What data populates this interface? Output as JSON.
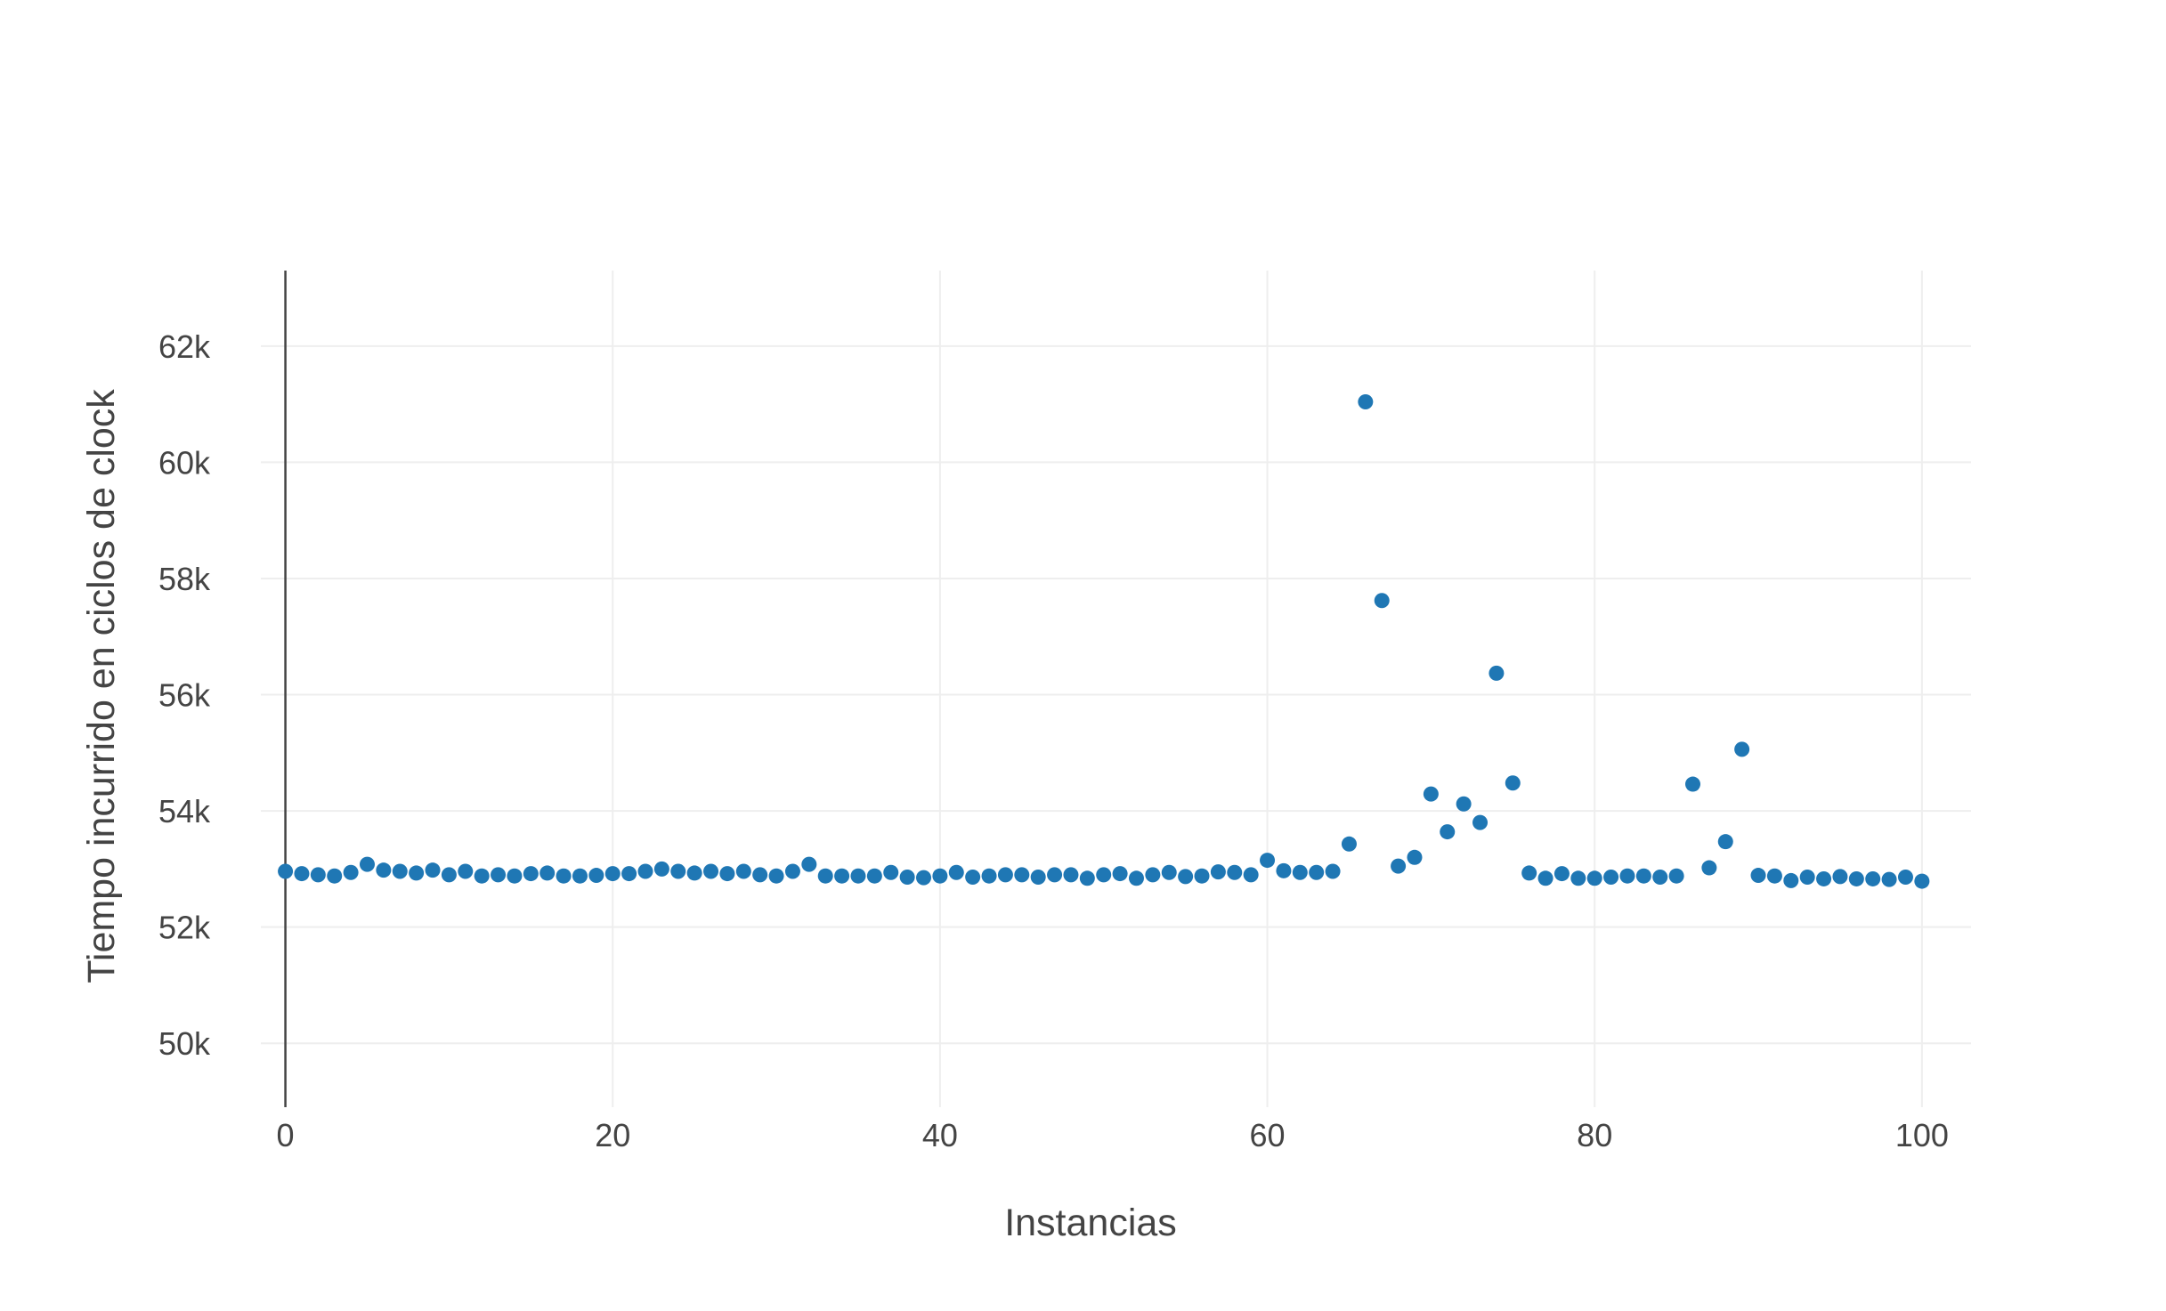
{
  "chart_data": {
    "type": "scatter",
    "title": "",
    "xlabel": "Instancias",
    "ylabel": "Tiempo incurrido en ciclos de clock",
    "xlim": [
      -1.5,
      103
    ],
    "ylim": [
      48900,
      63300
    ],
    "x_ticks": [
      0,
      20,
      40,
      60,
      80,
      100
    ],
    "x_tick_labels": [
      "0",
      "20",
      "40",
      "60",
      "80",
      "100"
    ],
    "y_ticks": [
      50000,
      52000,
      54000,
      56000,
      58000,
      60000,
      62000
    ],
    "y_tick_labels": [
      "50k",
      "52k",
      "54k",
      "56k",
      "58k",
      "60k",
      "62k"
    ],
    "grid": true,
    "legend": "none",
    "marker_color": "#1f77b4",
    "grid_color": "#eeeeee",
    "zero_line_color": "#444444",
    "series": [
      {
        "x": [
          0,
          1,
          2,
          3,
          4,
          5,
          6,
          7,
          8,
          9,
          10,
          11,
          12,
          13,
          14,
          15,
          16,
          17,
          18,
          19,
          20,
          21,
          22,
          23,
          24,
          25,
          26,
          27,
          28,
          29,
          30,
          31,
          32,
          33,
          34,
          35,
          36,
          37,
          38,
          39,
          40,
          41,
          42,
          43,
          44,
          45,
          46,
          47,
          48,
          49,
          50,
          51,
          52,
          53,
          54,
          55,
          56,
          57,
          58,
          59,
          60,
          61,
          62,
          63,
          64,
          65,
          66,
          67,
          68,
          69,
          70,
          71,
          72,
          73,
          74,
          75,
          76,
          77,
          78,
          79,
          80,
          81,
          82,
          83,
          84,
          85,
          86,
          87,
          88,
          89,
          90,
          91,
          92,
          93,
          94,
          95,
          96,
          97,
          98,
          99,
          100
        ],
        "y": [
          52960,
          52920,
          52900,
          52880,
          52940,
          53080,
          52980,
          52960,
          52930,
          52980,
          52900,
          52960,
          52880,
          52900,
          52880,
          52920,
          52930,
          52880,
          52880,
          52890,
          52920,
          52920,
          52960,
          53000,
          52960,
          52930,
          52960,
          52920,
          52960,
          52900,
          52880,
          52960,
          53080,
          52880,
          52880,
          52880,
          52880,
          52940,
          52860,
          52850,
          52880,
          52940,
          52860,
          52880,
          52900,
          52900,
          52860,
          52900,
          52900,
          52840,
          52900,
          52920,
          52840,
          52900,
          52940,
          52870,
          52880,
          52950,
          52940,
          52900,
          53150,
          52970,
          52940,
          52940,
          52960,
          53430,
          61040,
          57620,
          53050,
          53200,
          54290,
          53640,
          54120,
          53800,
          56370,
          54480,
          52930,
          52840,
          52920,
          52840,
          52840,
          52860,
          52880,
          52880,
          52860,
          52880,
          54460,
          53020,
          53470,
          55060,
          52890,
          52880,
          52800,
          52860,
          52830,
          52870,
          52830,
          52830,
          52820,
          52860,
          52790
        ]
      }
    ]
  }
}
